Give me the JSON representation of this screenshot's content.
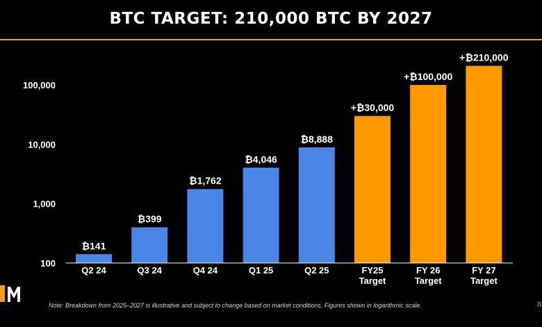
{
  "title": "BTC TARGET: 210,000 BTC BY 2027",
  "note": "Note: Breakdown from 2025–2027 is illustrative and subject to change based on market conditions. Figures shown in logarithmic scale.",
  "page_number": "8",
  "colors": {
    "background": "#000000",
    "accent": "#f59a1b",
    "actual_bar": "#4a86e8",
    "target_bar": "#ff9900",
    "text": "#ffffff"
  },
  "chart_data": {
    "type": "bar",
    "scale": "log",
    "ylim": [
      100,
      300000
    ],
    "yticks": [
      100,
      1000,
      10000,
      100000
    ],
    "ytick_labels": [
      "100",
      "1,000",
      "10,000",
      "100,000"
    ],
    "grid": false,
    "categories": [
      "Q2 24",
      "Q3 24",
      "Q4 24",
      "Q1 25",
      "Q2 25",
      "FY25\nTarget",
      "FY 26\nTarget",
      "FY 27\nTarget"
    ],
    "values": [
      141,
      399,
      1762,
      4046,
      8888,
      30000,
      100000,
      210000
    ],
    "data_labels": [
      "₿141",
      "₿399",
      "₿1,762",
      "₿4,046",
      "₿8,888",
      "+₿30,000",
      "+₿100,000",
      "+₿210,000"
    ],
    "bar_kind": [
      "actual",
      "actual",
      "actual",
      "actual",
      "actual",
      "target",
      "target",
      "target"
    ]
  }
}
